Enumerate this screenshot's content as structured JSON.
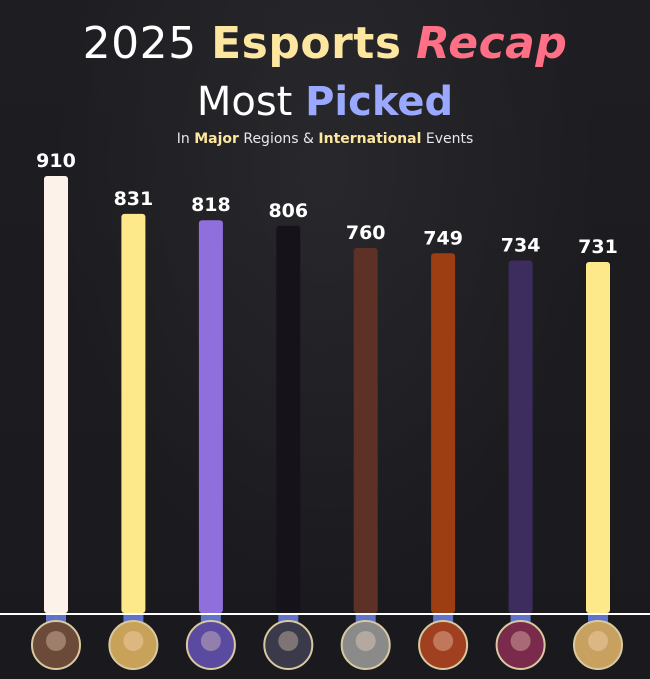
{
  "header": {
    "title_year": "2025",
    "title_esports": "Esports",
    "title_recap": "Recap",
    "title_most": "Most",
    "title_picked": "Picked",
    "subtitle_in": "In",
    "subtitle_major": "Major",
    "subtitle_regions": "Regions &",
    "subtitle_international": "International",
    "subtitle_events": "Events"
  },
  "colors": {
    "esports": "#fde6a0",
    "recap": "#ff6f86",
    "picked": "#9aa8ff",
    "subtitle_accent": "#fde6a0",
    "baseline": "#ffffff",
    "base_stub": "#5e73c9",
    "label": "#ffffff"
  },
  "chart_data": {
    "type": "bar",
    "title": "",
    "xlabel": "",
    "ylabel": "",
    "ylim": [
      0,
      910
    ],
    "grid": false,
    "categories": [
      "",
      "",
      "",
      "",
      "",
      "",
      "",
      ""
    ],
    "values": [
      910,
      831,
      818,
      806,
      760,
      749,
      734,
      731
    ],
    "bar_colors": [
      "#fdf2ea",
      "#fde88a",
      "#8f6fdc",
      "#16121a",
      "#5e3126",
      "#9c3e12",
      "#3d2c5e",
      "#fde88a"
    ],
    "icon_colors": [
      "#6b4a3a",
      "#c9a25a",
      "#5a4aa0",
      "#3a3a4a",
      "#8a8a8a",
      "#a04020",
      "#7a2a4a",
      "#c8a060"
    ]
  }
}
